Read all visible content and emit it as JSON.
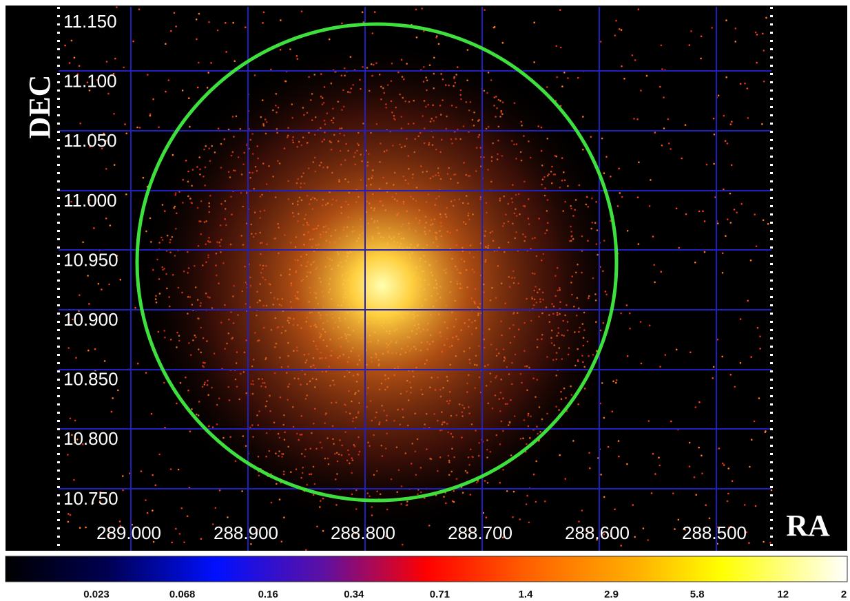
{
  "image": {
    "y_axis_label": "DEC",
    "x_axis_label": "RA",
    "y_ticks": [
      "11.150",
      "11.100",
      "11.050",
      "11.000",
      "10.950",
      "10.900",
      "10.850",
      "10.800",
      "10.750"
    ],
    "x_ticks": [
      "289.000",
      "288.900",
      "288.800",
      "288.700",
      "288.600",
      "288.500"
    ],
    "colorbar_labels": [
      "0.023",
      "0.068",
      "0.16",
      "0.34",
      "0.71",
      "1.4",
      "2.9",
      "5.8",
      "12",
      "2"
    ]
  }
}
